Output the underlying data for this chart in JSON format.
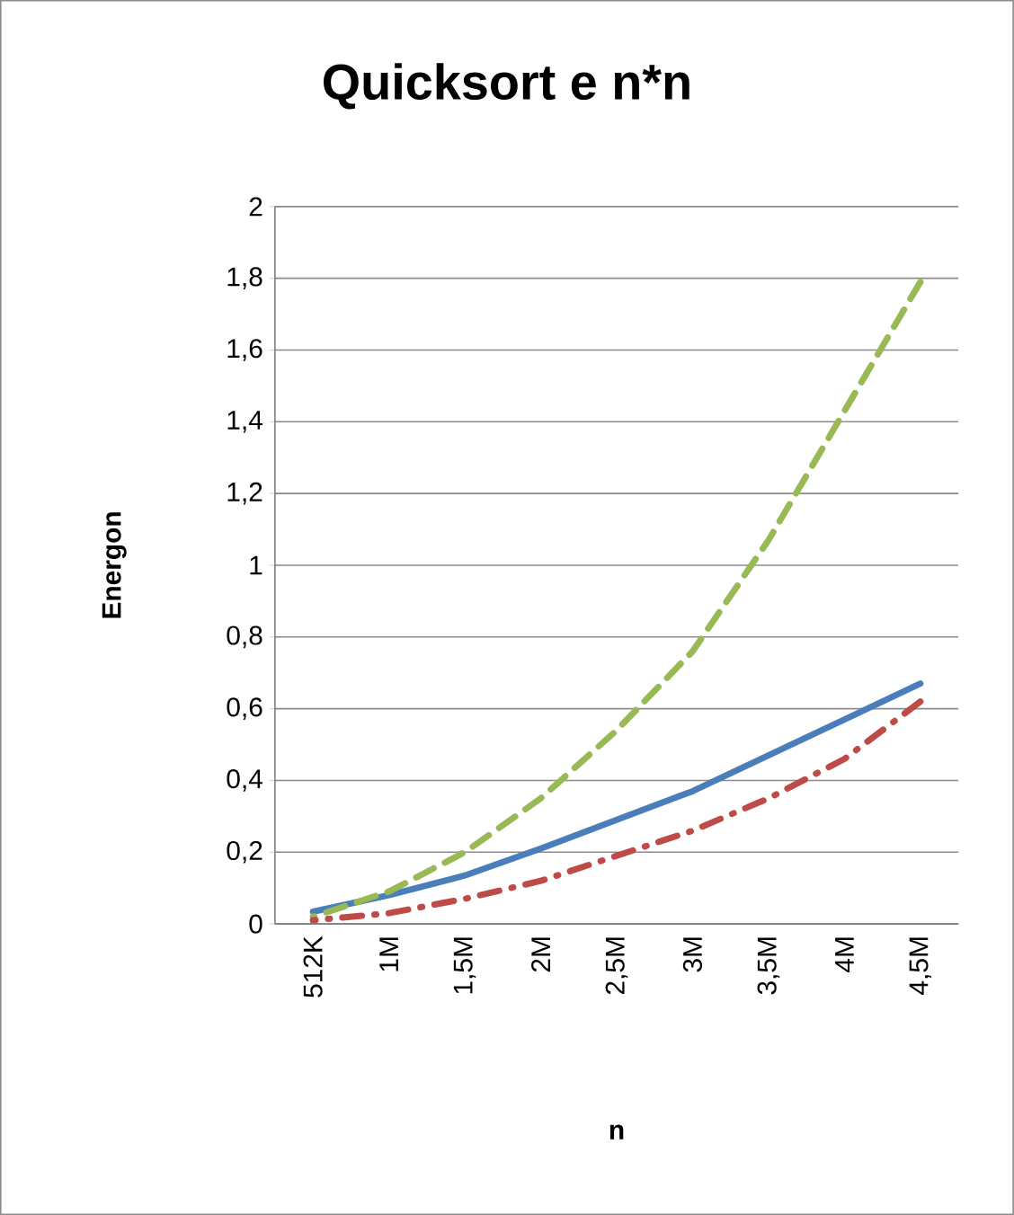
{
  "chart_data": {
    "type": "line",
    "title": "Quicksort e n*n",
    "xlabel": "n",
    "ylabel": "Energon",
    "categories": [
      "512K",
      "1M",
      "1,5M",
      "2M",
      "2,5M",
      "3M",
      "3,5M",
      "4M",
      "4,5M"
    ],
    "ylim": [
      0,
      2
    ],
    "yticks": [
      0,
      {
        "value": 0.2,
        "label": "0,2"
      },
      {
        "value": 0.4,
        "label": "0,4"
      },
      {
        "value": 0.6,
        "label": "0,6"
      },
      {
        "value": 0.8,
        "label": "0,8"
      },
      1,
      {
        "value": 1.2,
        "label": "1,2"
      },
      {
        "value": 1.4,
        "label": "1,4"
      },
      {
        "value": 1.6,
        "label": "1,6"
      },
      {
        "value": 1.8,
        "label": "1,8"
      },
      2
    ],
    "grid": "y",
    "marker": "none",
    "series": [
      {
        "color": "#4a7ebb",
        "line_style": "solid",
        "values": [
          0.034,
          0.08,
          0.135,
          0.21,
          0.29,
          0.37,
          0.47,
          0.57,
          0.67
        ]
      },
      {
        "color": "#98b954",
        "line_style": "dashed",
        "values": [
          0.02,
          0.09,
          0.2,
          0.35,
          0.54,
          0.76,
          1.07,
          1.43,
          1.79
        ]
      },
      {
        "color": "#be4b48",
        "line_style": "dashdot",
        "values": [
          0.01,
          0.03,
          0.07,
          0.12,
          0.19,
          0.26,
          0.35,
          0.46,
          0.62
        ]
      }
    ]
  }
}
